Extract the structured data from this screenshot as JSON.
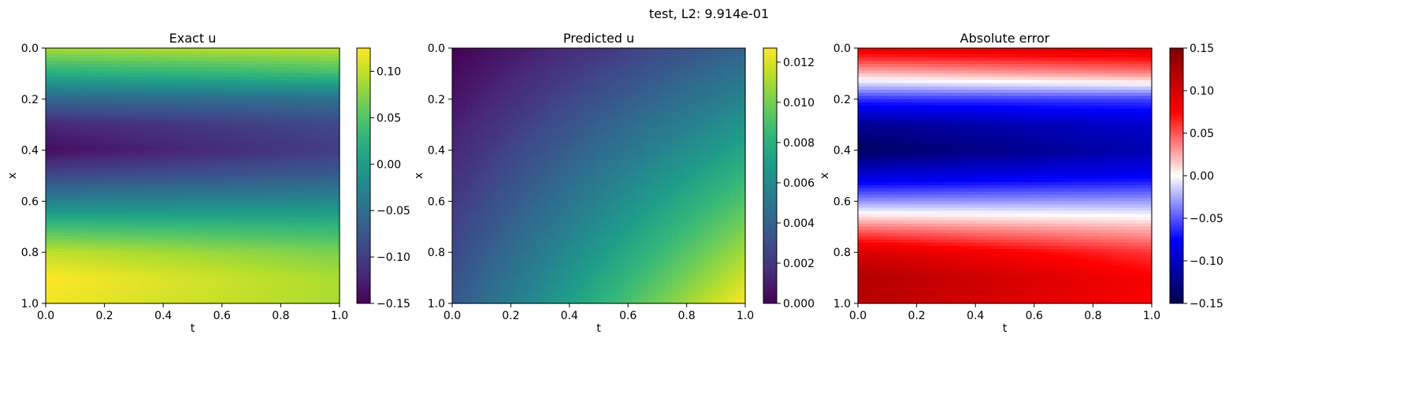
{
  "figure": {
    "suptitle": "test, L2: 9.914e-01"
  },
  "chart_data": [
    {
      "type": "heatmap",
      "title": "Exact u",
      "xlabel": "t",
      "ylabel": "x",
      "xlim": [
        0.0,
        1.0
      ],
      "ylim": [
        1.0,
        0.0
      ],
      "x_ticks": [
        "0.0",
        "0.2",
        "0.4",
        "0.6",
        "0.8",
        "1.0"
      ],
      "y_ticks": [
        "0.0",
        "0.2",
        "0.4",
        "0.6",
        "0.8",
        "1.0"
      ],
      "colormap": "viridis",
      "colorbar": {
        "range": [
          -0.15,
          0.125
        ],
        "ticks": [
          {
            "v": 0.1,
            "label": "0.10"
          },
          {
            "v": 0.05,
            "label": "0.05"
          },
          {
            "v": 0.0,
            "label": "0.00"
          },
          {
            "v": -0.05,
            "label": "−0.05"
          },
          {
            "v": -0.1,
            "label": "−0.10"
          },
          {
            "v": -0.15,
            "label": "−0.15"
          }
        ]
      },
      "x_positions": [
        0.0,
        1.0
      ],
      "x_profile_at_t0": [
        [
          0.0,
          0.09
        ],
        [
          0.1,
          0.02
        ],
        [
          0.2,
          -0.06
        ],
        [
          0.3,
          -0.12
        ],
        [
          0.4,
          -0.14
        ],
        [
          0.5,
          -0.09
        ],
        [
          0.6,
          -0.03
        ],
        [
          0.7,
          0.04
        ],
        [
          0.8,
          0.1
        ],
        [
          0.9,
          0.125
        ],
        [
          1.0,
          0.12
        ]
      ],
      "x_profile_at_t1": [
        [
          0.0,
          0.1
        ],
        [
          0.1,
          0.04
        ],
        [
          0.2,
          -0.05
        ],
        [
          0.3,
          -0.09
        ],
        [
          0.4,
          -0.1
        ],
        [
          0.5,
          -0.07
        ],
        [
          0.6,
          -0.02
        ],
        [
          0.7,
          0.03
        ],
        [
          0.8,
          0.07
        ],
        [
          0.9,
          0.09
        ],
        [
          1.0,
          0.09
        ]
      ]
    },
    {
      "type": "heatmap",
      "title": "Predicted u",
      "xlabel": "t",
      "ylabel": "x",
      "xlim": [
        0.0,
        1.0
      ],
      "ylim": [
        1.0,
        0.0
      ],
      "x_ticks": [
        "0.0",
        "0.2",
        "0.4",
        "0.6",
        "0.8",
        "1.0"
      ],
      "y_ticks": [
        "0.0",
        "0.2",
        "0.4",
        "0.6",
        "0.8",
        "1.0"
      ],
      "colormap": "viridis",
      "colorbar": {
        "range": [
          0.0,
          0.0127
        ],
        "ticks": [
          {
            "v": 0.012,
            "label": "0.012"
          },
          {
            "v": 0.01,
            "label": "0.010"
          },
          {
            "v": 0.008,
            "label": "0.008"
          },
          {
            "v": 0.006,
            "label": "0.006"
          },
          {
            "v": 0.004,
            "label": "0.004"
          },
          {
            "v": 0.002,
            "label": "0.002"
          },
          {
            "v": 0.0,
            "label": "0.000"
          }
        ]
      },
      "corner_values": {
        "t0_x0": 0.0,
        "t1_x0": 0.004,
        "t0_x1": 0.0035,
        "t1_x1": 0.0127
      }
    },
    {
      "type": "heatmap",
      "title": "Absolute error",
      "xlabel": "t",
      "ylabel": "x",
      "xlim": [
        0.0,
        1.0
      ],
      "ylim": [
        1.0,
        0.0
      ],
      "x_ticks": [
        "0.0",
        "0.2",
        "0.4",
        "0.6",
        "0.8",
        "1.0"
      ],
      "y_ticks": [
        "0.0",
        "0.2",
        "0.4",
        "0.6",
        "0.8",
        "1.0"
      ],
      "colormap": "seismic",
      "colorbar": {
        "range": [
          -0.15,
          0.15
        ],
        "ticks": [
          {
            "v": 0.15,
            "label": "0.15"
          },
          {
            "v": 0.1,
            "label": "0.10"
          },
          {
            "v": 0.05,
            "label": "0.05"
          },
          {
            "v": 0.0,
            "label": "0.00"
          },
          {
            "v": -0.05,
            "label": "−0.05"
          },
          {
            "v": -0.1,
            "label": "−0.10"
          },
          {
            "v": -0.15,
            "label": "−0.15"
          }
        ]
      }
    }
  ]
}
